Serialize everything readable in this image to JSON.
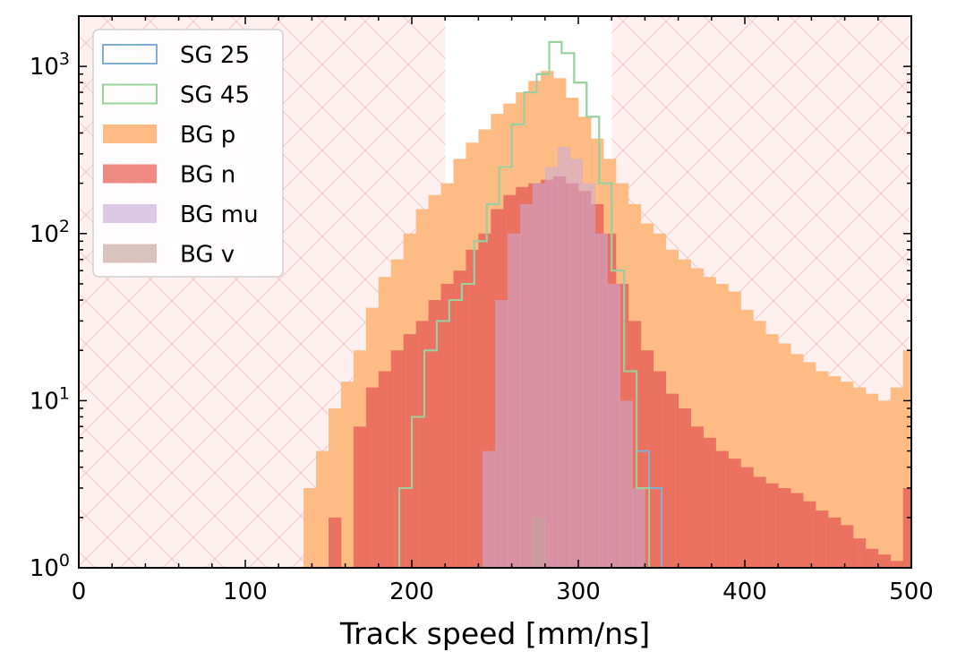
{
  "chart_data": {
    "type": "bar",
    "subtype": "overlapping step histograms",
    "title": "",
    "xlabel": "Track speed [mm/ns]",
    "ylabel": "",
    "xlim": [
      0,
      500
    ],
    "ylim": [
      1,
      2000
    ],
    "yscale": "log",
    "grid": false,
    "legend_position": "top-left",
    "bin_width": 7.5,
    "x_ticks": [
      0,
      100,
      200,
      300,
      400,
      500
    ],
    "x_tick_labels": [
      "0",
      "100",
      "200",
      "300",
      "400",
      "500"
    ],
    "y_ticks": [
      1,
      10,
      100,
      1000
    ],
    "y_tick_labels": [
      {
        "base": "10",
        "exp": "0"
      },
      {
        "base": "10",
        "exp": "1"
      },
      {
        "base": "10",
        "exp": "2"
      },
      {
        "base": "10",
        "exp": "3"
      }
    ],
    "excluded_regions": [
      [
        0,
        220
      ],
      [
        320,
        500
      ]
    ],
    "series": [
      {
        "name": "BG p",
        "style": "filled",
        "color": "#ffbb84",
        "x": [
          135,
          142.5,
          150,
          157.5,
          165,
          172.5,
          180,
          187.5,
          195,
          202.5,
          210,
          217.5,
          225,
          232.5,
          240,
          247.5,
          255,
          262.5,
          270,
          277.5,
          285,
          292.5,
          300,
          307.5,
          315,
          322.5,
          330,
          337.5,
          345,
          352.5,
          360,
          367.5,
          375,
          382.5,
          390,
          397.5,
          405,
          412.5,
          420,
          427.5,
          435,
          442.5,
          450,
          457.5,
          465,
          472.5,
          480,
          487.5,
          495
        ],
        "values": [
          3,
          5,
          9,
          13,
          20,
          36,
          55,
          70,
          100,
          140,
          170,
          200,
          280,
          350,
          420,
          520,
          600,
          700,
          820,
          940,
          850,
          650,
          500,
          370,
          280,
          200,
          150,
          115,
          100,
          80,
          70,
          62,
          55,
          50,
          45,
          35,
          30,
          25,
          22,
          19,
          17,
          15,
          14,
          13,
          12,
          11,
          10,
          12,
          20
        ]
      },
      {
        "name": "BG n",
        "style": "filled",
        "color": "#e8655a",
        "x": [
          150,
          157.5,
          165,
          172.5,
          180,
          187.5,
          195,
          202.5,
          210,
          217.5,
          225,
          232.5,
          240,
          247.5,
          255,
          262.5,
          270,
          277.5,
          285,
          292.5,
          300,
          307.5,
          315,
          322.5,
          330,
          337.5,
          345,
          352.5,
          360,
          367.5,
          375,
          382.5,
          390,
          397.5,
          405,
          412.5,
          420,
          427.5,
          435,
          442.5,
          450,
          457.5,
          465,
          472.5,
          480,
          487.5,
          495
        ],
        "values": [
          2,
          1,
          7,
          12,
          15,
          20,
          25,
          30,
          40,
          50,
          60,
          80,
          100,
          140,
          170,
          190,
          200,
          210,
          220,
          200,
          180,
          150,
          100,
          50,
          30,
          20,
          15,
          11,
          9,
          7,
          6,
          5,
          4.5,
          4,
          3.5,
          3.2,
          3,
          2.8,
          2.5,
          2.2,
          2,
          1.8,
          1.5,
          1.3,
          1.2,
          1.1,
          3
        ]
      },
      {
        "name": "BG mu",
        "style": "filled",
        "color": "#c8addc",
        "x": [
          242.5,
          250,
          257.5,
          265,
          272.5,
          280,
          287.5,
          295,
          302.5,
          310,
          317.5,
          325,
          332.5
        ],
        "values": [
          5,
          40,
          100,
          150,
          200,
          250,
          330,
          280,
          200,
          100,
          50,
          10,
          3
        ]
      },
      {
        "name": "BG v",
        "style": "filled",
        "color": "#c5a49e",
        "x": [
          272.5
        ],
        "values": [
          2
        ]
      },
      {
        "name": "SG 25",
        "style": "step",
        "color": "#7fb0d3",
        "x": [
          192.5,
          200,
          207.5,
          215,
          222.5,
          230,
          237.5,
          245,
          252.5,
          260,
          267.5,
          275,
          282.5,
          290,
          297.5,
          305,
          312.5,
          320,
          327.5,
          335,
          342.5
        ],
        "values": [
          3,
          8,
          20,
          30,
          40,
          50,
          90,
          150,
          250,
          450,
          700,
          900,
          1400,
          1200,
          800,
          500,
          200,
          60,
          15,
          5,
          3
        ]
      },
      {
        "name": "SG 45",
        "style": "step",
        "color": "#9bd19b",
        "x": [
          192.5,
          200,
          207.5,
          215,
          222.5,
          230,
          237.5,
          245,
          252.5,
          260,
          267.5,
          275,
          282.5,
          290,
          297.5,
          305,
          312.5,
          320,
          327.5,
          335
        ],
        "values": [
          3,
          8,
          20,
          30,
          40,
          50,
          90,
          150,
          250,
          450,
          700,
          900,
          1400,
          1200,
          800,
          500,
          200,
          60,
          15,
          3
        ]
      }
    ]
  }
}
